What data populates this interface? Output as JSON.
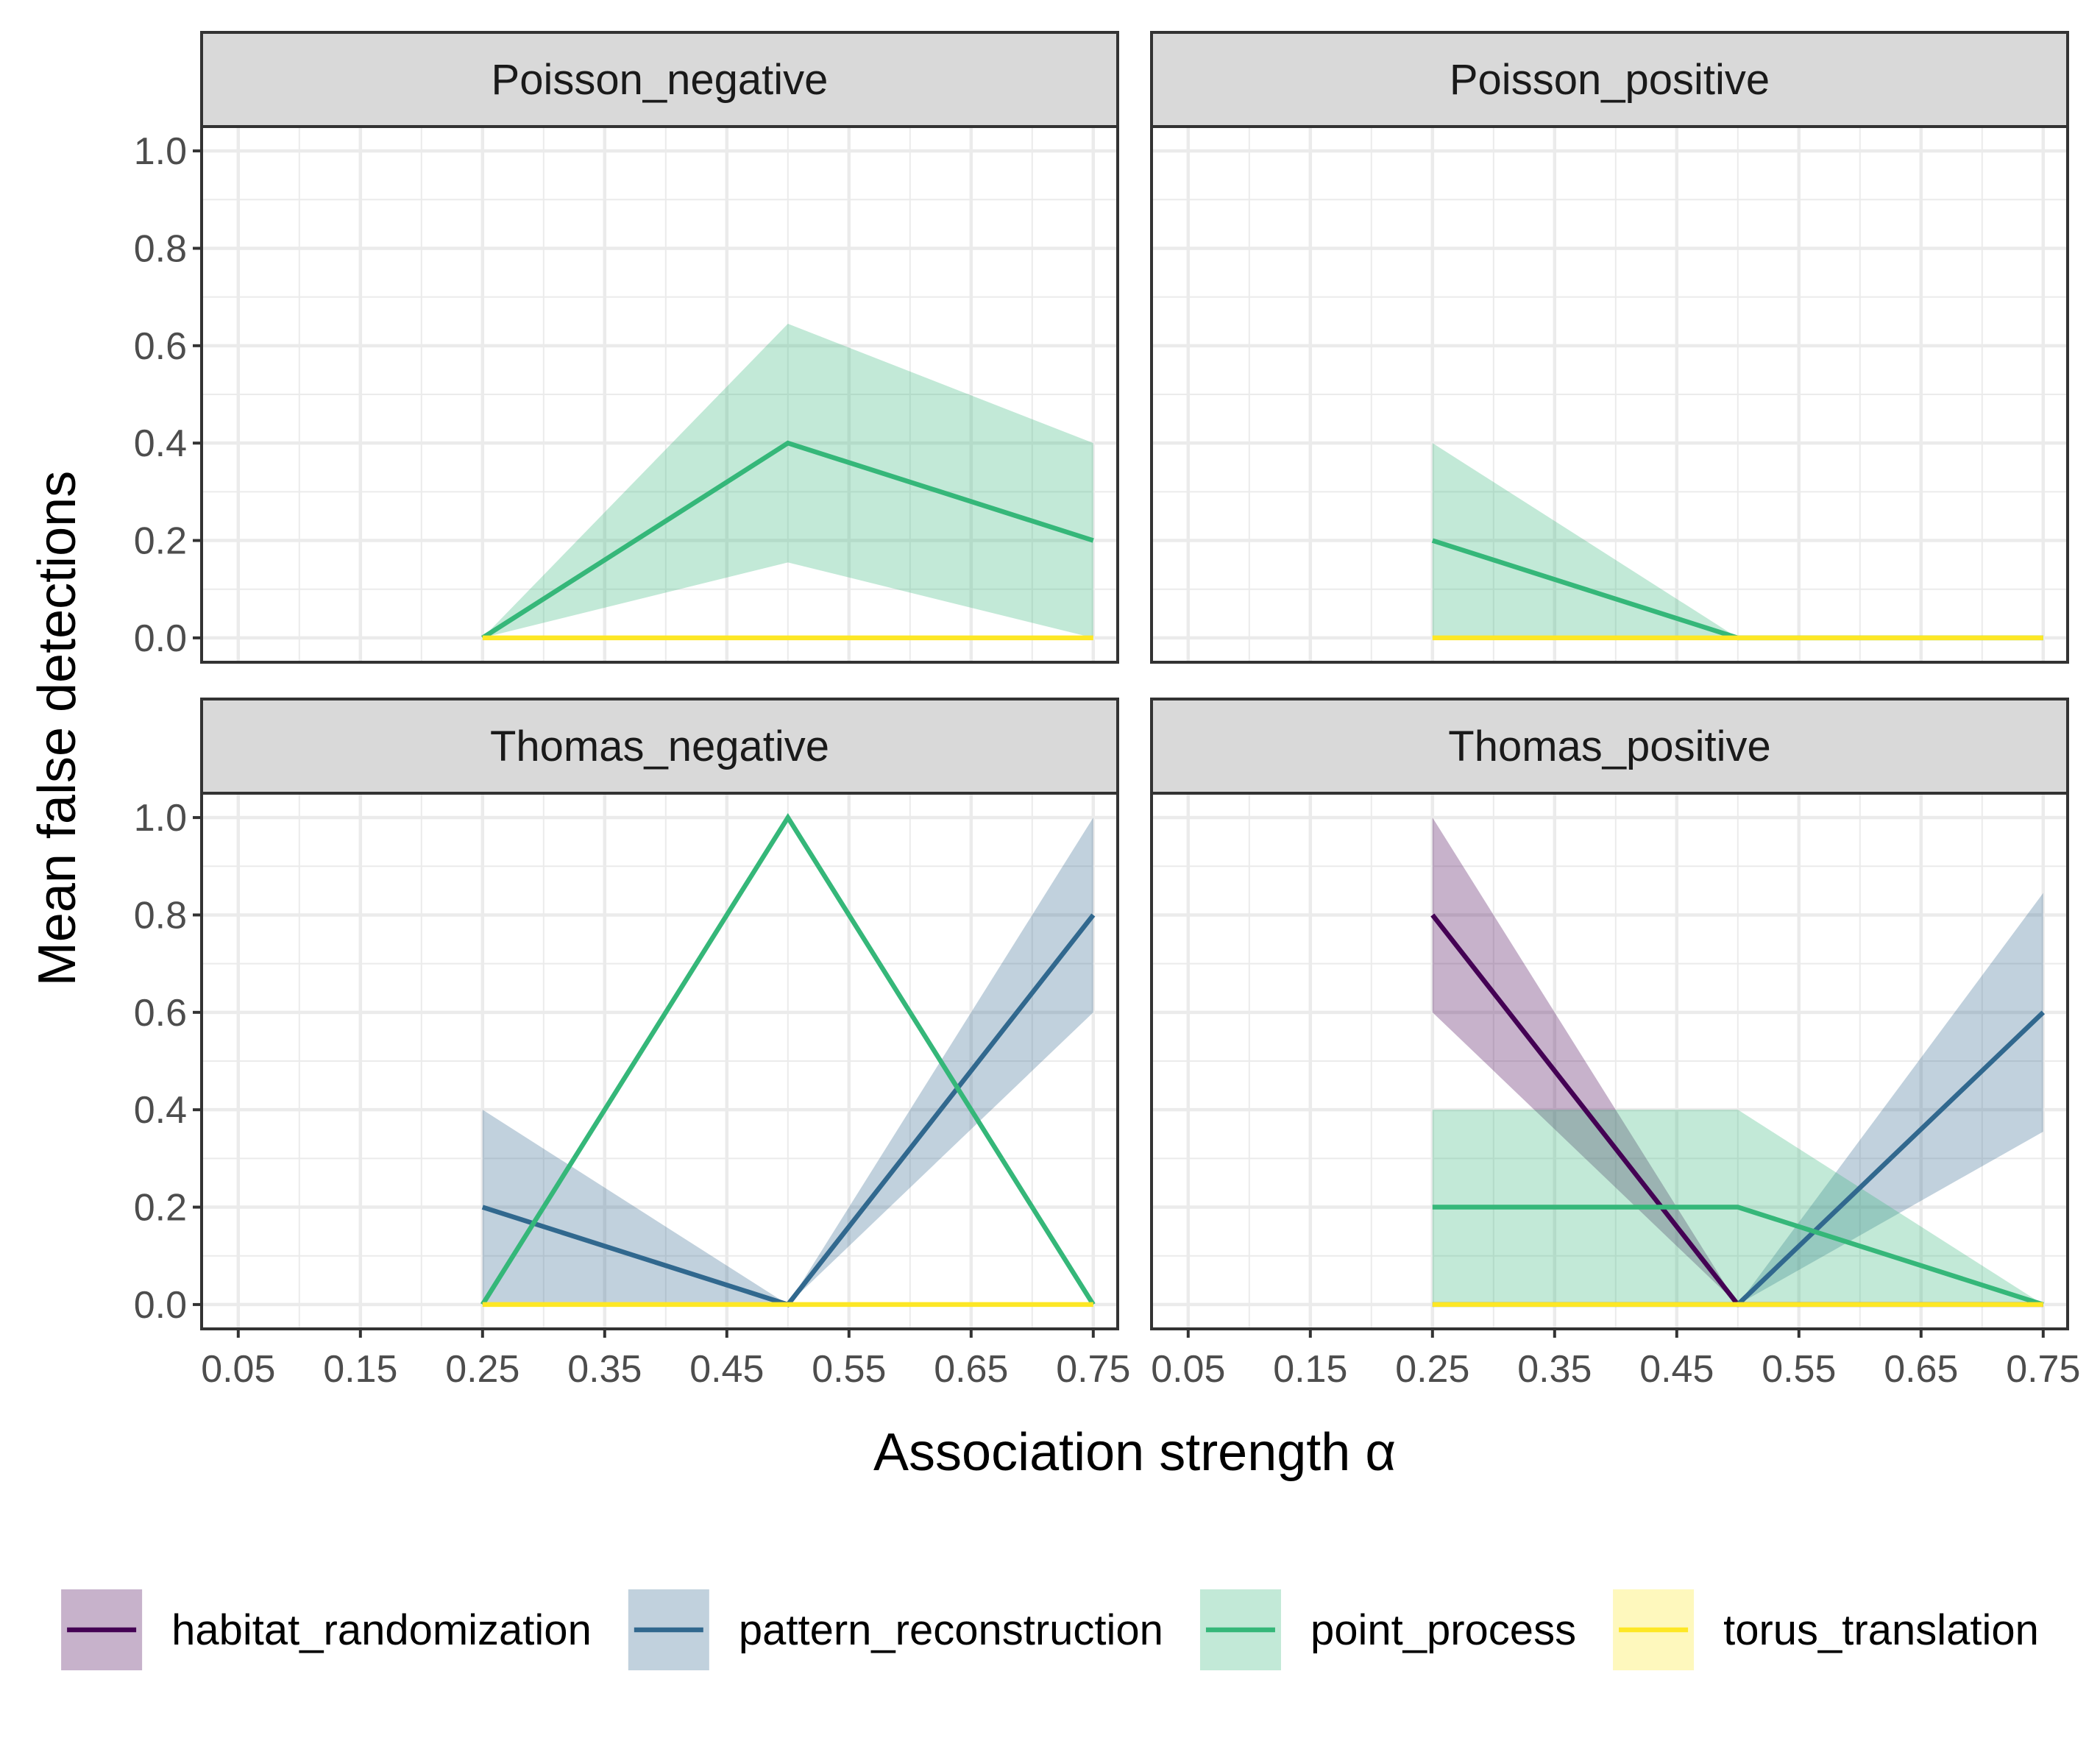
{
  "chart_data": {
    "type": "line",
    "xlabel": "Association strength α",
    "ylabel": "Mean false detections",
    "x_ticks": [
      "0.05",
      "0.15",
      "0.25",
      "0.35",
      "0.45",
      "0.55",
      "0.65",
      "0.75"
    ],
    "y_ticks": [
      "0.0",
      "0.2",
      "0.4",
      "0.6",
      "0.8",
      "1.0"
    ],
    "xlim": [
      0.02,
      0.77
    ],
    "ylim": [
      -0.05,
      1.05
    ],
    "grid": true,
    "legend_position": "bottom",
    "series_colors": {
      "habitat_randomization": "#440154",
      "pattern_reconstruction": "#31688e",
      "point_process": "#35b779",
      "torus_translation": "#fde725"
    },
    "legend": [
      {
        "name": "habitat_randomization",
        "color": "#440154"
      },
      {
        "name": "pattern_reconstruction",
        "color": "#31688e"
      },
      {
        "name": "point_process",
        "color": "#35b779"
      },
      {
        "name": "torus_translation",
        "color": "#fde725"
      }
    ],
    "panels": [
      {
        "title": "Poisson_negative",
        "series": [
          {
            "name": "point_process",
            "x": [
              0.25,
              0.5,
              0.75
            ],
            "y": [
              0.0,
              0.4,
              0.2
            ],
            "lower": [
              0.0,
              0.155,
              0.0
            ],
            "upper": [
              0.0,
              0.645,
              0.4
            ]
          },
          {
            "name": "torus_translation",
            "x": [
              0.25,
              0.5,
              0.75
            ],
            "y": [
              0.0,
              0.0,
              0.0
            ],
            "lower": [
              0.0,
              0.0,
              0.0
            ],
            "upper": [
              0.0,
              0.0,
              0.0
            ]
          }
        ]
      },
      {
        "title": "Poisson_positive",
        "series": [
          {
            "name": "point_process",
            "x": [
              0.25,
              0.5,
              0.75
            ],
            "y": [
              0.2,
              0.0,
              0.0
            ],
            "lower": [
              0.0,
              0.0,
              0.0
            ],
            "upper": [
              0.4,
              0.0,
              0.0
            ]
          },
          {
            "name": "torus_translation",
            "x": [
              0.25,
              0.5,
              0.75
            ],
            "y": [
              0.0,
              0.0,
              0.0
            ],
            "lower": [
              0.0,
              0.0,
              0.0
            ],
            "upper": [
              0.0,
              0.0,
              0.0
            ]
          }
        ]
      },
      {
        "title": "Thomas_negative",
        "series": [
          {
            "name": "pattern_reconstruction",
            "x": [
              0.25,
              0.5,
              0.75
            ],
            "y": [
              0.2,
              0.0,
              0.8
            ],
            "lower": [
              0.0,
              0.0,
              0.6
            ],
            "upper": [
              0.4,
              0.0,
              1.0
            ]
          },
          {
            "name": "point_process",
            "x": [
              0.25,
              0.5,
              0.75
            ],
            "y": [
              0.0,
              1.0,
              0.0
            ],
            "lower": [
              0.0,
              1.0,
              0.0
            ],
            "upper": [
              0.0,
              1.0,
              0.0
            ]
          },
          {
            "name": "torus_translation",
            "x": [
              0.25,
              0.5,
              0.75
            ],
            "y": [
              0.0,
              0.0,
              0.0
            ],
            "lower": [
              0.0,
              0.0,
              0.0
            ],
            "upper": [
              0.0,
              0.0,
              0.0
            ]
          }
        ]
      },
      {
        "title": "Thomas_positive",
        "series": [
          {
            "name": "habitat_randomization",
            "x": [
              0.25,
              0.5,
              0.75
            ],
            "y": [
              0.8,
              0.0,
              0.0
            ],
            "lower": [
              0.6,
              0.0,
              0.0
            ],
            "upper": [
              1.0,
              0.0,
              0.0
            ]
          },
          {
            "name": "pattern_reconstruction",
            "x": [
              0.25,
              0.5,
              0.75
            ],
            "y": [
              0.0,
              0.0,
              0.6
            ],
            "lower": [
              0.0,
              0.0,
              0.355
            ],
            "upper": [
              0.0,
              0.0,
              0.845
            ]
          },
          {
            "name": "point_process",
            "x": [
              0.25,
              0.5,
              0.75
            ],
            "y": [
              0.2,
              0.2,
              0.0
            ],
            "lower": [
              0.0,
              0.0,
              0.0
            ],
            "upper": [
              0.4,
              0.4,
              0.0
            ]
          },
          {
            "name": "torus_translation",
            "x": [
              0.25,
              0.5,
              0.75
            ],
            "y": [
              0.0,
              0.0,
              0.0
            ],
            "lower": [
              0.0,
              0.0,
              0.0
            ],
            "upper": [
              0.0,
              0.0,
              0.0
            ]
          }
        ]
      }
    ]
  }
}
